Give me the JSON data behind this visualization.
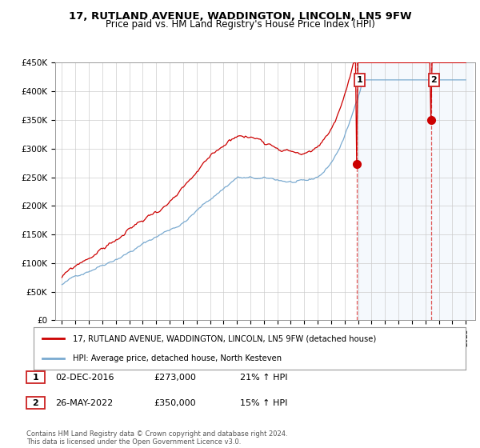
{
  "title": "17, RUTLAND AVENUE, WADDINGTON, LINCOLN, LN5 9FW",
  "subtitle": "Price paid vs. HM Land Registry's House Price Index (HPI)",
  "legend_line1": "17, RUTLAND AVENUE, WADDINGTON, LINCOLN, LN5 9FW (detached house)",
  "legend_line2": "HPI: Average price, detached house, North Kesteven",
  "annotation1_label": "1",
  "annotation1_date": "02-DEC-2016",
  "annotation1_price": "£273,000",
  "annotation1_hpi": "21% ↑ HPI",
  "annotation1_year": 2016.92,
  "annotation1_value": 273000,
  "annotation2_label": "2",
  "annotation2_date": "26-MAY-2022",
  "annotation2_price": "£350,000",
  "annotation2_hpi": "15% ↑ HPI",
  "annotation2_year": 2022.42,
  "annotation2_value": 350000,
  "color_red": "#cc0000",
  "color_blue": "#7aaad0",
  "color_vline": "#dd4444",
  "color_bg_highlight": "#ddeeff",
  "ylim": [
    0,
    450000
  ],
  "yticks": [
    0,
    50000,
    100000,
    150000,
    200000,
    250000,
    300000,
    350000,
    400000,
    450000
  ],
  "ytick_labels": [
    "£0",
    "£50K",
    "£100K",
    "£150K",
    "£200K",
    "£250K",
    "£300K",
    "£350K",
    "£400K",
    "£450K"
  ],
  "footer": "Contains HM Land Registry data © Crown copyright and database right 2024.\nThis data is licensed under the Open Government Licence v3.0.",
  "title_fontsize": 10,
  "subtitle_fontsize": 9
}
